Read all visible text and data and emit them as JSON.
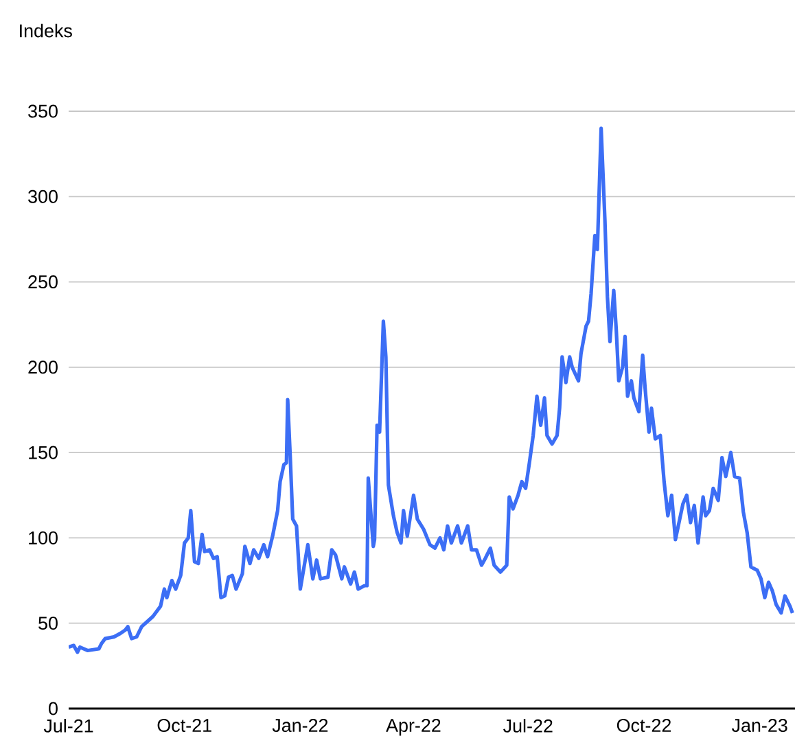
{
  "chart_data": {
    "type": "line",
    "ylabel": "Indeks",
    "xlim": [
      "2021-07-01",
      "2023-01-29"
    ],
    "xticks": [
      {
        "value": "2021-07-01",
        "label": "Jul-21"
      },
      {
        "value": "2021-10-01",
        "label": "Oct-21"
      },
      {
        "value": "2022-01-01",
        "label": "Jan-22"
      },
      {
        "value": "2022-04-01",
        "label": "Apr-22"
      },
      {
        "value": "2022-07-01",
        "label": "Jul-22"
      },
      {
        "value": "2022-10-01",
        "label": "Oct-22"
      },
      {
        "value": "2023-01-01",
        "label": "Jan-23"
      }
    ],
    "ylim": [
      0,
      350
    ],
    "yticks": [
      0,
      50,
      100,
      150,
      200,
      250,
      300,
      350
    ],
    "grid": "y",
    "marker": "none",
    "line_style": "solid",
    "x": [
      "2021-07-01",
      "2021-07-05",
      "2021-07-08",
      "2021-07-10",
      "2021-07-16",
      "2021-07-25",
      "2021-07-27",
      "2021-07-30",
      "2021-08-06",
      "2021-08-11",
      "2021-08-15",
      "2021-08-17",
      "2021-08-20",
      "2021-08-24",
      "2021-08-28",
      "2021-09-03",
      "2021-09-06",
      "2021-09-12",
      "2021-09-15",
      "2021-09-17",
      "2021-09-21",
      "2021-09-24",
      "2021-09-28",
      "2021-10-01",
      "2021-10-04",
      "2021-10-06",
      "2021-10-09",
      "2021-10-12",
      "2021-10-15",
      "2021-10-17",
      "2021-10-21",
      "2021-10-24",
      "2021-10-27",
      "2021-10-30",
      "2021-11-02",
      "2021-11-05",
      "2021-11-08",
      "2021-11-11",
      "2021-11-16",
      "2021-11-18",
      "2021-11-22",
      "2021-11-25",
      "2021-11-29",
      "2021-12-03",
      "2021-12-06",
      "2021-12-10",
      "2021-12-14",
      "2021-12-16",
      "2021-12-19",
      "2021-12-21",
      "2021-12-22",
      "2021-12-24",
      "2021-12-26",
      "2021-12-29",
      "2022-01-01",
      "2022-01-04",
      "2022-01-07",
      "2022-01-11",
      "2022-01-14",
      "2022-01-17",
      "2022-01-23",
      "2022-01-26",
      "2022-01-29",
      "2022-02-03",
      "2022-02-05",
      "2022-02-10",
      "2022-02-13",
      "2022-02-16",
      "2022-02-21",
      "2022-02-23",
      "2022-02-24",
      "2022-02-28",
      "2022-03-01",
      "2022-03-03",
      "2022-03-05",
      "2022-03-08",
      "2022-03-10",
      "2022-03-12",
      "2022-03-16",
      "2022-03-19",
      "2022-03-22",
      "2022-03-24",
      "2022-03-27",
      "2022-04-01",
      "2022-04-04",
      "2022-04-09",
      "2022-04-14",
      "2022-04-18",
      "2022-04-22",
      "2022-04-25",
      "2022-04-28",
      "2022-05-01",
      "2022-05-06",
      "2022-05-09",
      "2022-05-14",
      "2022-05-17",
      "2022-05-21",
      "2022-05-25",
      "2022-05-28",
      "2022-06-01",
      "2022-06-04",
      "2022-06-09",
      "2022-06-14",
      "2022-06-16",
      "2022-06-19",
      "2022-06-23",
      "2022-06-26",
      "2022-06-29",
      "2022-07-02",
      "2022-07-05",
      "2022-07-08",
      "2022-07-11",
      "2022-07-14",
      "2022-07-16",
      "2022-07-20",
      "2022-07-24",
      "2022-07-26",
      "2022-07-28",
      "2022-07-31",
      "2022-08-03",
      "2022-08-05",
      "2022-08-10",
      "2022-08-12",
      "2022-08-16",
      "2022-08-18",
      "2022-08-20",
      "2022-08-23",
      "2022-08-25",
      "2022-08-28",
      "2022-08-31",
      "2022-09-02",
      "2022-09-04",
      "2022-09-07",
      "2022-09-09",
      "2022-09-11",
      "2022-09-14",
      "2022-09-16",
      "2022-09-18",
      "2022-09-21",
      "2022-09-23",
      "2022-09-27",
      "2022-09-30",
      "2022-10-02",
      "2022-10-05",
      "2022-10-07",
      "2022-10-10",
      "2022-10-14",
      "2022-10-17",
      "2022-10-20",
      "2022-10-23",
      "2022-10-26",
      "2022-11-01",
      "2022-11-04",
      "2022-11-07",
      "2022-11-10",
      "2022-11-13",
      "2022-11-17",
      "2022-11-19",
      "2022-11-22",
      "2022-11-25",
      "2022-11-29",
      "2022-12-02",
      "2022-12-05",
      "2022-12-09",
      "2022-12-12",
      "2022-12-16",
      "2022-12-19",
      "2022-12-22",
      "2022-12-25",
      "2022-12-30",
      "2023-01-02",
      "2023-01-05",
      "2023-01-08",
      "2023-01-11",
      "2023-01-14",
      "2023-01-18",
      "2023-01-21",
      "2023-01-25",
      "2023-01-27"
    ],
    "series": [
      {
        "color": "#3c6ef5",
        "values": [
          36,
          37,
          33,
          36,
          34,
          35,
          38,
          41,
          42,
          44,
          46,
          48,
          41,
          42,
          48,
          52,
          54,
          60,
          70,
          65,
          75,
          70,
          78,
          97,
          100,
          116,
          86,
          85,
          102,
          92,
          93,
          88,
          89,
          65,
          66,
          77,
          78,
          70,
          79,
          95,
          85,
          93,
          88,
          96,
          89,
          101,
          116,
          133,
          143,
          144,
          181,
          148,
          111,
          107,
          70,
          83,
          96,
          76,
          87,
          76,
          77,
          93,
          90,
          76,
          83,
          73,
          80,
          70,
          72,
          72,
          135,
          95,
          99,
          166,
          162,
          227,
          206,
          131,
          113,
          103,
          97,
          116,
          101,
          125,
          111,
          105,
          96,
          94,
          100,
          93,
          107,
          97,
          107,
          97,
          107,
          93,
          93,
          84,
          88,
          94,
          84,
          80,
          84,
          124,
          117,
          125,
          133,
          129,
          144,
          160,
          183,
          166,
          182,
          160,
          155,
          160,
          176,
          206,
          191,
          206,
          200,
          192,
          208,
          224,
          227,
          243,
          277,
          269,
          340,
          286,
          241,
          215,
          245,
          222,
          192,
          200,
          218,
          183,
          192,
          182,
          174,
          207,
          187,
          162,
          176,
          158,
          160,
          133,
          113,
          125,
          99,
          120,
          125,
          109,
          119,
          97,
          124,
          113,
          116,
          129,
          122,
          147,
          136,
          150,
          136,
          135,
          115,
          103,
          83,
          81,
          76,
          65,
          74,
          69,
          61,
          56,
          66,
          60,
          56
        ]
      }
    ]
  }
}
